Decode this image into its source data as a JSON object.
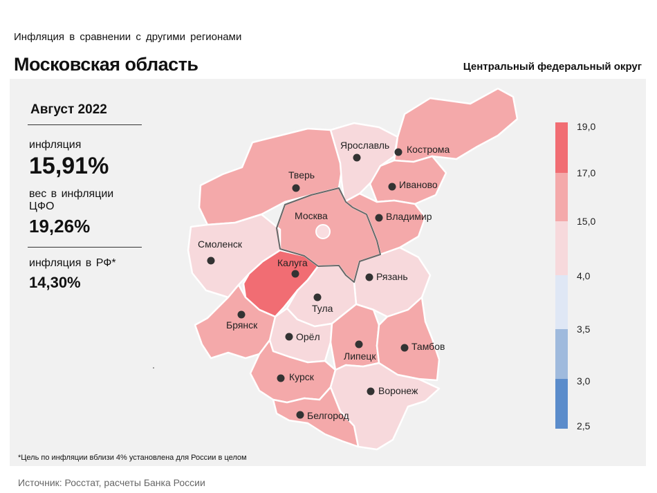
{
  "header": {
    "subtitle": "Инфляция в сравнении с другими регионами",
    "region_title": "Московская область",
    "district": "Центральный федеральный округ"
  },
  "info": {
    "period": "Август 2022",
    "inflation_label": "инфляция",
    "inflation_value": "15,91%",
    "weight_label": "вес в инфляции ЦФО",
    "weight_value": "19,26%",
    "rf_label": "инфляция в РФ*",
    "rf_value": "14,30%"
  },
  "footnote": "*Цель по инфляции вблизи 4% установлена для России в целом",
  "source": "Источник: Росстат, расчеты Банка России",
  "legend": {
    "ticks": [
      "19,0",
      "17,0",
      "15,0",
      "4,0",
      "3,5",
      "3,0",
      "2,5"
    ],
    "bins": [
      {
        "color": "#f16d73"
      },
      {
        "color": "#f4a9aa"
      },
      {
        "color": "#f7d9dc"
      },
      {
        "color": "#dfe7f5"
      },
      {
        "color": "#9fbadd"
      },
      {
        "color": "#5b8ccb"
      }
    ]
  },
  "colors": {
    "bin_17_19": "#f16d73",
    "bin_15_17": "#f4a9aa",
    "bin_4_15": "#f7d9dc",
    "highlight_border": "#666666",
    "background_panel": "#f1f1f1"
  },
  "regions": [
    {
      "id": "tver",
      "name": "Тверь",
      "bin": "15-17"
    },
    {
      "id": "yaroslavl",
      "name": "Ярославль",
      "bin": "4-15"
    },
    {
      "id": "kostroma",
      "name": "Кострома",
      "bin": "15-17"
    },
    {
      "id": "ivanovo",
      "name": "Иваново",
      "bin": "15-17"
    },
    {
      "id": "vladimir",
      "name": "Владимир",
      "bin": "15-17"
    },
    {
      "id": "moskva",
      "name": "Москва",
      "bin": "15-17",
      "highlighted": true
    },
    {
      "id": "smolensk",
      "name": "Смоленск",
      "bin": "4-15"
    },
    {
      "id": "kaluga",
      "name": "Калуга",
      "bin": "17-19"
    },
    {
      "id": "ryazan",
      "name": "Рязань",
      "bin": "4-15"
    },
    {
      "id": "tula",
      "name": "Тула",
      "bin": "4-15"
    },
    {
      "id": "bryansk",
      "name": "Брянск",
      "bin": "15-17"
    },
    {
      "id": "orel",
      "name": "Орёл",
      "bin": "4-15"
    },
    {
      "id": "lipetsk",
      "name": "Липецк",
      "bin": "15-17"
    },
    {
      "id": "tambov",
      "name": "Тамбов",
      "bin": "15-17"
    },
    {
      "id": "kursk",
      "name": "Курск",
      "bin": "15-17"
    },
    {
      "id": "voronezh",
      "name": "Воронеж",
      "bin": "4-15"
    },
    {
      "id": "belgorod",
      "name": "Белгород",
      "bin": "15-17"
    }
  ]
}
